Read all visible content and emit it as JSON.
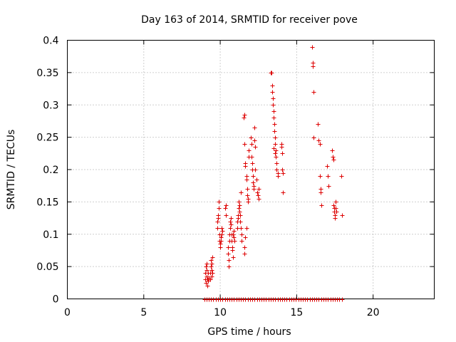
{
  "chart_data": {
    "type": "scatter",
    "title": "Day 163 of 2014, SRMTID for receiver pove",
    "xlabel": "GPS time / hours",
    "ylabel": "SRMTID / TECUs",
    "xlim": [
      0,
      24
    ],
    "ylim": [
      0,
      0.4
    ],
    "xticks": [
      0,
      5,
      10,
      15,
      20
    ],
    "xtick_labels": [
      "0",
      "5",
      "10",
      "15",
      "20"
    ],
    "yticks": [
      0,
      0.05,
      0.1,
      0.15,
      0.2,
      0.25,
      0.3,
      0.35,
      0.4
    ],
    "ytick_labels": [
      "0",
      "0.05",
      "0.1",
      "0.15",
      "0.2",
      "0.25",
      "0.3",
      "0.35",
      "0.4"
    ],
    "grid": true,
    "marker": "+",
    "colors": {
      "marker": "#dd0000",
      "grid": "#a0a0a0",
      "axis": "#000000"
    },
    "series": [
      {
        "name": "SRMTID",
        "points": [
          [
            9.0,
            0.03
          ],
          [
            9.0,
            0.04
          ],
          [
            9.05,
            0.05
          ],
          [
            9.05,
            0.025
          ],
          [
            9.1,
            0.035
          ],
          [
            9.1,
            0.045
          ],
          [
            9.1,
            0.055
          ],
          [
            9.15,
            0.02
          ],
          [
            9.15,
            0.03
          ],
          [
            9.2,
            0.028
          ],
          [
            9.2,
            0.04
          ],
          [
            9.25,
            0.033
          ],
          [
            9.35,
            0.03
          ],
          [
            9.35,
            0.04
          ],
          [
            9.4,
            0.05
          ],
          [
            9.4,
            0.06
          ],
          [
            9.45,
            0.035
          ],
          [
            9.45,
            0.045
          ],
          [
            9.45,
            0.055
          ],
          [
            9.5,
            0.065
          ],
          [
            9.5,
            0.04
          ],
          [
            9.8,
            0.11
          ],
          [
            9.8,
            0.12
          ],
          [
            9.85,
            0.125
          ],
          [
            9.85,
            0.13
          ],
          [
            9.9,
            0.14
          ],
          [
            9.9,
            0.15
          ],
          [
            9.95,
            0.1
          ],
          [
            9.95,
            0.09
          ],
          [
            10.0,
            0.085
          ],
          [
            10.0,
            0.08
          ],
          [
            10.05,
            0.09
          ],
          [
            10.05,
            0.095
          ],
          [
            10.1,
            0.1
          ],
          [
            10.1,
            0.11
          ],
          [
            10.15,
            0.105
          ],
          [
            10.3,
            0.14
          ],
          [
            10.35,
            0.145
          ],
          [
            10.35,
            0.13
          ],
          [
            10.5,
            0.07
          ],
          [
            10.5,
            0.08
          ],
          [
            10.55,
            0.06
          ],
          [
            10.55,
            0.05
          ],
          [
            10.6,
            0.09
          ],
          [
            10.6,
            0.1
          ],
          [
            10.65,
            0.11
          ],
          [
            10.65,
            0.12
          ],
          [
            10.7,
            0.125
          ],
          [
            10.7,
            0.115
          ],
          [
            10.75,
            0.1
          ],
          [
            10.75,
            0.09
          ],
          [
            10.8,
            0.08
          ],
          [
            10.8,
            0.075
          ],
          [
            10.85,
            0.065
          ],
          [
            10.85,
            0.1
          ],
          [
            10.9,
            0.105
          ],
          [
            10.9,
            0.095
          ],
          [
            10.95,
            0.09
          ],
          [
            11.1,
            0.11
          ],
          [
            11.1,
            0.12
          ],
          [
            11.15,
            0.125
          ],
          [
            11.15,
            0.13
          ],
          [
            11.2,
            0.14
          ],
          [
            11.2,
            0.15
          ],
          [
            11.25,
            0.145
          ],
          [
            11.25,
            0.135
          ],
          [
            11.3,
            0.13
          ],
          [
            11.3,
            0.12
          ],
          [
            11.35,
            0.165
          ],
          [
            11.35,
            0.11
          ],
          [
            11.4,
            0.1
          ],
          [
            11.4,
            0.09
          ],
          [
            11.55,
            0.28
          ],
          [
            11.6,
            0.285
          ],
          [
            11.6,
            0.24
          ],
          [
            11.65,
            0.21
          ],
          [
            11.65,
            0.205
          ],
          [
            11.7,
            0.19
          ],
          [
            11.7,
            0.185
          ],
          [
            11.75,
            0.17
          ],
          [
            11.75,
            0.16
          ],
          [
            11.8,
            0.155
          ],
          [
            11.8,
            0.15
          ],
          [
            11.85,
            0.22
          ],
          [
            11.85,
            0.23
          ],
          [
            11.6,
            0.07
          ],
          [
            11.6,
            0.08
          ],
          [
            11.65,
            0.095
          ],
          [
            11.7,
            0.11
          ],
          [
            12.0,
            0.25
          ],
          [
            12.05,
            0.24
          ],
          [
            12.05,
            0.22
          ],
          [
            12.1,
            0.21
          ],
          [
            12.1,
            0.2
          ],
          [
            12.15,
            0.19
          ],
          [
            12.15,
            0.18
          ],
          [
            12.2,
            0.175
          ],
          [
            12.2,
            0.17
          ],
          [
            12.25,
            0.265
          ],
          [
            12.25,
            0.245
          ],
          [
            12.3,
            0.235
          ],
          [
            12.3,
            0.2
          ],
          [
            12.35,
            0.185
          ],
          [
            12.4,
            0.165
          ],
          [
            12.45,
            0.16
          ],
          [
            12.5,
            0.17
          ],
          [
            12.5,
            0.155
          ],
          [
            13.3,
            0.35
          ],
          [
            13.35,
            0.35
          ],
          [
            13.4,
            0.33
          ],
          [
            13.4,
            0.32
          ],
          [
            13.45,
            0.31
          ],
          [
            13.45,
            0.3
          ],
          [
            13.5,
            0.29
          ],
          [
            13.5,
            0.28
          ],
          [
            13.55,
            0.27
          ],
          [
            13.55,
            0.26
          ],
          [
            13.6,
            0.25
          ],
          [
            13.6,
            0.24
          ],
          [
            13.65,
            0.23
          ],
          [
            13.65,
            0.22
          ],
          [
            13.7,
            0.21
          ],
          [
            13.7,
            0.2
          ],
          [
            13.75,
            0.195
          ],
          [
            13.75,
            0.19
          ],
          [
            13.6,
            0.225
          ],
          [
            13.5,
            0.233
          ],
          [
            14.0,
            0.24
          ],
          [
            14.0,
            0.235
          ],
          [
            14.05,
            0.225
          ],
          [
            14.05,
            0.2
          ],
          [
            14.1,
            0.165
          ],
          [
            14.1,
            0.195
          ],
          [
            16.0,
            0.39
          ],
          [
            16.05,
            0.365
          ],
          [
            16.05,
            0.36
          ],
          [
            16.1,
            0.32
          ],
          [
            16.1,
            0.25
          ],
          [
            16.4,
            0.27
          ],
          [
            16.45,
            0.245
          ],
          [
            16.5,
            0.24
          ],
          [
            16.5,
            0.19
          ],
          [
            16.55,
            0.165
          ],
          [
            16.55,
            0.17
          ],
          [
            16.6,
            0.145
          ],
          [
            17.0,
            0.205
          ],
          [
            17.05,
            0.19
          ],
          [
            17.1,
            0.175
          ],
          [
            17.3,
            0.23
          ],
          [
            17.35,
            0.22
          ],
          [
            17.4,
            0.215
          ],
          [
            17.4,
            0.145
          ],
          [
            17.45,
            0.14
          ],
          [
            17.45,
            0.135
          ],
          [
            17.5,
            0.13
          ],
          [
            17.5,
            0.125
          ],
          [
            17.55,
            0.15
          ],
          [
            17.55,
            0.14
          ],
          [
            17.6,
            0.135
          ],
          [
            17.9,
            0.19
          ],
          [
            17.95,
            0.13
          ]
        ]
      },
      {
        "name": "zero baseline",
        "points": [
          [
            8.95,
            0
          ],
          [
            9.1,
            0
          ],
          [
            9.25,
            0
          ],
          [
            9.4,
            0
          ],
          [
            9.55,
            0
          ],
          [
            9.7,
            0
          ],
          [
            9.85,
            0
          ],
          [
            10.0,
            0
          ],
          [
            10.15,
            0
          ],
          [
            10.3,
            0
          ],
          [
            10.45,
            0
          ],
          [
            10.6,
            0
          ],
          [
            10.75,
            0
          ],
          [
            10.9,
            0
          ],
          [
            11.05,
            0
          ],
          [
            11.2,
            0
          ],
          [
            11.35,
            0
          ],
          [
            11.5,
            0
          ],
          [
            11.65,
            0
          ],
          [
            11.8,
            0
          ],
          [
            11.95,
            0
          ],
          [
            12.1,
            0
          ],
          [
            12.25,
            0
          ],
          [
            12.4,
            0
          ],
          [
            12.55,
            0
          ],
          [
            12.7,
            0
          ],
          [
            12.85,
            0
          ],
          [
            13.0,
            0
          ],
          [
            13.15,
            0
          ],
          [
            13.3,
            0
          ],
          [
            13.45,
            0
          ],
          [
            13.6,
            0
          ],
          [
            13.75,
            0
          ],
          [
            13.9,
            0
          ],
          [
            14.05,
            0
          ],
          [
            14.2,
            0
          ],
          [
            14.35,
            0
          ],
          [
            14.5,
            0
          ],
          [
            14.65,
            0
          ],
          [
            14.8,
            0
          ],
          [
            14.95,
            0
          ],
          [
            15.1,
            0
          ],
          [
            15.25,
            0
          ],
          [
            15.4,
            0
          ],
          [
            15.55,
            0
          ],
          [
            15.7,
            0
          ],
          [
            15.85,
            0
          ],
          [
            16.0,
            0
          ],
          [
            16.15,
            0
          ],
          [
            16.3,
            0
          ],
          [
            16.45,
            0
          ],
          [
            16.6,
            0
          ],
          [
            16.75,
            0
          ],
          [
            16.9,
            0
          ],
          [
            17.05,
            0
          ],
          [
            17.2,
            0
          ],
          [
            17.35,
            0
          ],
          [
            17.5,
            0
          ],
          [
            17.65,
            0
          ],
          [
            17.8,
            0
          ],
          [
            17.95,
            0
          ]
        ]
      }
    ]
  }
}
